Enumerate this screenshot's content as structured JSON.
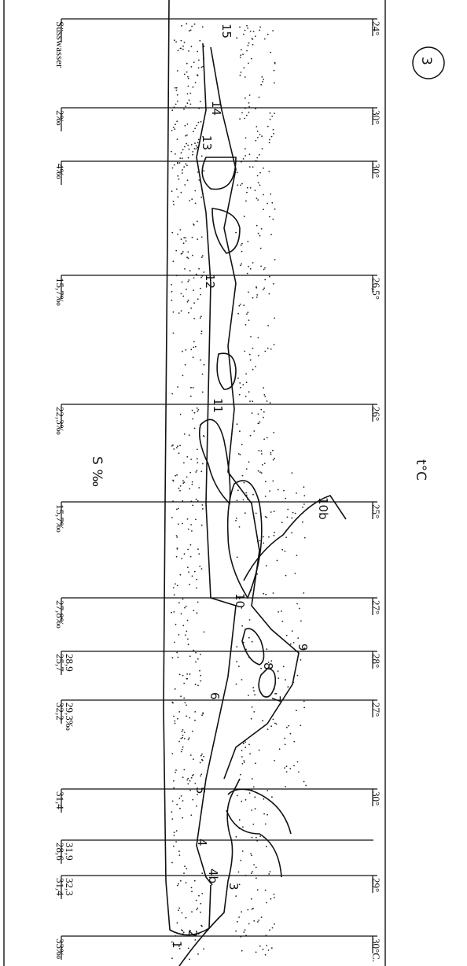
{
  "map": {
    "figure_number": "3",
    "temperature_label": "t°C",
    "salinity_label": "S ‰",
    "transects": [
      {
        "left": [
          "Süsswasser"
        ],
        "right": "24°"
      },
      {
        "left": [
          "2‰"
        ],
        "right": "30°"
      },
      {
        "left": [
          "4‰"
        ],
        "right": "30°"
      },
      {
        "left": [
          "15,7‰"
        ],
        "right": "26,5°"
      },
      {
        "left": [
          "22,3‰"
        ],
        "right": "26°"
      },
      {
        "left": [
          "15,7‰"
        ],
        "right": "25°"
      },
      {
        "left": [
          "27,8‰"
        ],
        "right": "27°"
      },
      {
        "left": [
          "28,9",
          "25,7"
        ],
        "right": "28°"
      },
      {
        "left": [
          "29,3‰",
          "32,2"
        ],
        "right": "27°"
      },
      {
        "left": [
          "31,4"
        ],
        "right": "30°"
      },
      {
        "left": [
          "31,9",
          "28,6"
        ]
      },
      {
        "left": [
          "32,3",
          "31,4"
        ],
        "right": "29°"
      },
      {
        "left": [
          "33‰"
        ],
        "right": "30°C."
      }
    ],
    "stations": [
      "15",
      "14",
      "13",
      "12",
      "11",
      "10b",
      "10",
      "9",
      "8",
      "7",
      "6",
      "5",
      "4",
      "4b",
      "3",
      "2",
      "1"
    ]
  }
}
